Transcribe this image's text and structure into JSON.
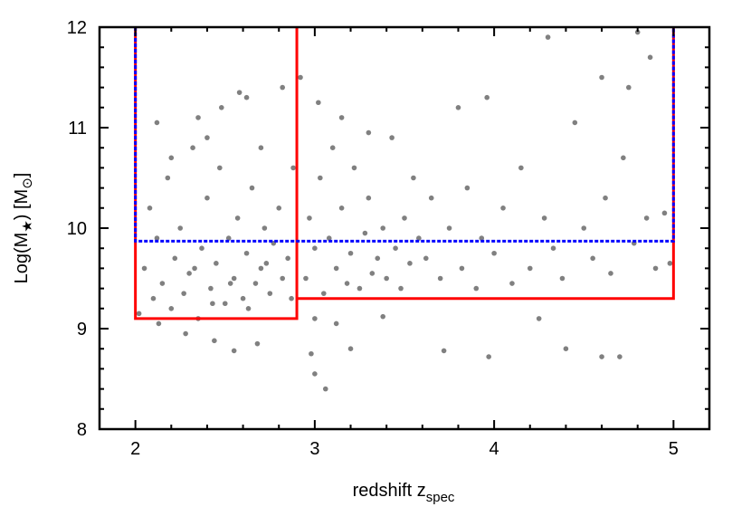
{
  "chart_data": {
    "type": "scatter",
    "x_label": [
      "redshift z",
      "spec"
    ],
    "y_label": [
      "Log(M",
      "★",
      ") [M",
      "⊙",
      "]"
    ],
    "color": "#808080",
    "xlim": [
      1.8,
      5.2
    ],
    "ylim": [
      8,
      12
    ],
    "xticks": [
      2,
      3,
      4,
      5
    ],
    "yticks": [
      8,
      9,
      10,
      11,
      12
    ],
    "xminorticks": [
      2.2,
      2.4,
      2.6,
      2.8,
      3.2,
      3.4,
      3.6,
      3.8,
      4.2,
      4.4,
      4.6,
      4.8,
      5.2
    ],
    "yminorticks": [
      8.2,
      8.4,
      8.6,
      8.8,
      9.2,
      9.4,
      9.6,
      9.8,
      10.2,
      10.4,
      10.6,
      10.8,
      11.2,
      11.4,
      11.6,
      11.8
    ],
    "x": [
      2.02,
      2.05,
      2.08,
      2.1,
      2.12,
      2.15,
      2.18,
      2.2,
      2.22,
      2.25,
      2.27,
      2.3,
      2.32,
      2.35,
      2.37,
      2.4,
      2.42,
      2.45,
      2.47,
      2.5,
      2.52,
      2.55,
      2.57,
      2.6,
      2.62,
      2.65,
      2.67,
      2.7,
      2.72,
      2.75,
      2.77,
      2.8,
      2.82,
      2.85,
      2.87,
      2.88,
      2.13,
      2.28,
      2.44,
      2.55,
      2.68,
      2.12,
      2.35,
      2.48,
      2.62,
      2.58,
      2.82,
      2.4,
      2.2,
      2.7,
      2.33,
      2.53,
      2.73,
      2.63,
      2.43,
      2.92,
      3.02,
      2.95,
      2.97,
      3.0,
      3.03,
      3.05,
      3.08,
      3.1,
      3.12,
      3.15,
      3.18,
      3.2,
      3.22,
      3.25,
      3.28,
      3.3,
      3.32,
      3.35,
      3.38,
      3.4,
      3.43,
      3.45,
      3.48,
      3.5,
      3.53,
      3.55,
      3.58,
      3.0,
      3.12,
      3.06,
      3.0,
      2.98,
      3.2,
      3.38,
      3.15,
      3.3,
      3.62,
      3.65,
      3.7,
      3.72,
      3.75,
      3.8,
      3.82,
      3.85,
      3.9,
      3.93,
      3.96,
      3.97,
      4.0,
      4.05,
      4.1,
      4.15,
      4.2,
      4.25,
      4.28,
      4.3,
      4.33,
      4.38,
      4.4,
      4.45,
      4.5,
      4.55,
      4.6,
      4.6,
      4.62,
      4.65,
      4.7,
      4.72,
      4.75,
      4.78,
      4.8,
      4.85,
      4.87,
      4.9,
      4.95,
      4.98
    ],
    "values": [
      9.15,
      9.6,
      10.2,
      9.3,
      9.9,
      9.45,
      10.5,
      9.2,
      9.7,
      10.0,
      9.35,
      9.55,
      10.8,
      9.1,
      9.8,
      10.3,
      9.4,
      9.65,
      10.6,
      9.25,
      9.9,
      9.5,
      10.1,
      9.3,
      9.75,
      10.4,
      9.45,
      9.6,
      10.0,
      9.35,
      9.85,
      10.2,
      9.5,
      9.7,
      9.3,
      10.6,
      9.05,
      8.95,
      8.88,
      8.78,
      8.85,
      11.05,
      11.1,
      11.2,
      11.3,
      11.35,
      11.4,
      10.9,
      10.7,
      10.8,
      9.6,
      9.45,
      9.65,
      9.2,
      9.25,
      11.5,
      11.25,
      9.5,
      10.1,
      9.8,
      10.5,
      9.35,
      9.9,
      10.8,
      9.6,
      10.2,
      9.45,
      9.75,
      10.6,
      9.4,
      9.95,
      10.3,
      9.55,
      9.7,
      10.0,
      9.5,
      10.9,
      9.8,
      9.4,
      10.1,
      9.65,
      10.5,
      9.9,
      9.1,
      9.05,
      8.4,
      8.55,
      8.75,
      8.8,
      9.12,
      11.1,
      10.95,
      9.7,
      10.3,
      9.5,
      8.78,
      10.0,
      11.2,
      9.6,
      10.4,
      9.4,
      9.9,
      11.3,
      8.72,
      9.75,
      10.2,
      9.45,
      10.6,
      9.6,
      9.1,
      10.1,
      11.9,
      9.8,
      9.5,
      8.8,
      11.05,
      10.0,
      9.7,
      11.5,
      8.72,
      10.3,
      9.55,
      8.72,
      10.7,
      11.4,
      9.85,
      11.95,
      10.1,
      11.7,
      9.6,
      10.15,
      9.65
    ],
    "lines": [
      {
        "color": "#ff0000",
        "dash": false,
        "x": [
          2,
          2,
          2.9,
          2.9
        ],
        "y": [
          12,
          9.1,
          9.1,
          12
        ]
      },
      {
        "color": "#ff0000",
        "dash": false,
        "x": [
          2.9,
          5,
          5
        ],
        "y": [
          9.3,
          9.3,
          12
        ]
      },
      {
        "color": "#0000ff",
        "dash": true,
        "x": [
          2,
          2,
          5,
          5
        ],
        "y": [
          12,
          9.87,
          9.87,
          12
        ]
      }
    ]
  }
}
